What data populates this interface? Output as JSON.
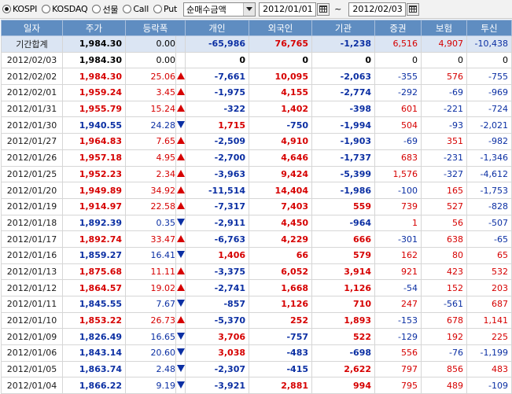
{
  "toolbar": {
    "radios": [
      {
        "label": "KOSPI",
        "checked": true
      },
      {
        "label": "KOSDAQ",
        "checked": false
      },
      {
        "label": "선물",
        "checked": false
      },
      {
        "label": "Call",
        "checked": false
      },
      {
        "label": "Put",
        "checked": false
      }
    ],
    "select_value": "순매수금액",
    "date_from": "2012/01/01",
    "date_sep": "~",
    "date_to": "2012/02/03"
  },
  "headers": [
    "일자",
    "주가",
    "등락폭",
    "개인",
    "외국인",
    "기관",
    "증권",
    "보험",
    "투신"
  ],
  "colors": {
    "up": "#d60000",
    "down": "#0b2fa3",
    "header_bg": "#5f8dc1",
    "summary_bg": "#dbe5f3"
  },
  "rows": [
    {
      "date": "기간합계",
      "price": "1,984.30",
      "dir": "flat",
      "chg": "0.00",
      "ind": "-65,986",
      "frn": "76,765",
      "inst": "-1,238",
      "sec": "6,516",
      "ins": "4,907",
      "trust": "-10,438",
      "summary": true
    },
    {
      "date": "2012/02/03",
      "price": "1,984.30",
      "dir": "flat",
      "chg": "0.00",
      "ind": "0",
      "frn": "0",
      "inst": "0",
      "sec": "0",
      "ins": "0",
      "trust": "0"
    },
    {
      "date": "2012/02/02",
      "price": "1,984.30",
      "dir": "up",
      "chg": "25.06",
      "ind": "-7,661",
      "frn": "10,095",
      "inst": "-2,063",
      "sec": "-355",
      "ins": "576",
      "trust": "-755"
    },
    {
      "date": "2012/02/01",
      "price": "1,959.24",
      "dir": "up",
      "chg": "3.45",
      "ind": "-1,975",
      "frn": "4,155",
      "inst": "-2,774",
      "sec": "-292",
      "ins": "-69",
      "trust": "-969"
    },
    {
      "date": "2012/01/31",
      "price": "1,955.79",
      "dir": "up",
      "chg": "15.24",
      "ind": "-322",
      "frn": "1,402",
      "inst": "-398",
      "sec": "601",
      "ins": "-221",
      "trust": "-724"
    },
    {
      "date": "2012/01/30",
      "price": "1,940.55",
      "dir": "down",
      "chg": "24.28",
      "ind": "1,715",
      "frn": "-750",
      "inst": "-1,994",
      "sec": "504",
      "ins": "-93",
      "trust": "-2,021"
    },
    {
      "date": "2012/01/27",
      "price": "1,964.83",
      "dir": "up",
      "chg": "7.65",
      "ind": "-2,509",
      "frn": "4,910",
      "inst": "-1,903",
      "sec": "-69",
      "ins": "351",
      "trust": "-982"
    },
    {
      "date": "2012/01/26",
      "price": "1,957.18",
      "dir": "up",
      "chg": "4.95",
      "ind": "-2,700",
      "frn": "4,646",
      "inst": "-1,737",
      "sec": "683",
      "ins": "-231",
      "trust": "-1,346"
    },
    {
      "date": "2012/01/25",
      "price": "1,952.23",
      "dir": "up",
      "chg": "2.34",
      "ind": "-3,963",
      "frn": "9,424",
      "inst": "-5,399",
      "sec": "1,576",
      "ins": "-327",
      "trust": "-4,612"
    },
    {
      "date": "2012/01/20",
      "price": "1,949.89",
      "dir": "up",
      "chg": "34.92",
      "ind": "-11,514",
      "frn": "14,404",
      "inst": "-1,986",
      "sec": "-100",
      "ins": "165",
      "trust": "-1,753"
    },
    {
      "date": "2012/01/19",
      "price": "1,914.97",
      "dir": "up",
      "chg": "22.58",
      "ind": "-7,317",
      "frn": "7,403",
      "inst": "559",
      "sec": "739",
      "ins": "527",
      "trust": "-828"
    },
    {
      "date": "2012/01/18",
      "price": "1,892.39",
      "dir": "down",
      "chg": "0.35",
      "ind": "-2,911",
      "frn": "4,450",
      "inst": "-964",
      "sec": "1",
      "ins": "56",
      "trust": "-507"
    },
    {
      "date": "2012/01/17",
      "price": "1,892.74",
      "dir": "up",
      "chg": "33.47",
      "ind": "-6,763",
      "frn": "4,229",
      "inst": "666",
      "sec": "-301",
      "ins": "638",
      "trust": "-65"
    },
    {
      "date": "2012/01/16",
      "price": "1,859.27",
      "dir": "down",
      "chg": "16.41",
      "ind": "1,406",
      "frn": "66",
      "inst": "579",
      "sec": "162",
      "ins": "80",
      "trust": "65"
    },
    {
      "date": "2012/01/13",
      "price": "1,875.68",
      "dir": "up",
      "chg": "11.11",
      "ind": "-3,375",
      "frn": "6,052",
      "inst": "3,914",
      "sec": "921",
      "ins": "423",
      "trust": "532"
    },
    {
      "date": "2012/01/12",
      "price": "1,864.57",
      "dir": "up",
      "chg": "19.02",
      "ind": "-2,741",
      "frn": "1,668",
      "inst": "1,126",
      "sec": "-54",
      "ins": "152",
      "trust": "203"
    },
    {
      "date": "2012/01/11",
      "price": "1,845.55",
      "dir": "down",
      "chg": "7.67",
      "ind": "-857",
      "frn": "1,126",
      "inst": "710",
      "sec": "247",
      "ins": "-561",
      "trust": "687"
    },
    {
      "date": "2012/01/10",
      "price": "1,853.22",
      "dir": "up",
      "chg": "26.73",
      "ind": "-5,370",
      "frn": "252",
      "inst": "1,893",
      "sec": "-153",
      "ins": "678",
      "trust": "1,141"
    },
    {
      "date": "2012/01/09",
      "price": "1,826.49",
      "dir": "down",
      "chg": "16.65",
      "ind": "3,706",
      "frn": "-757",
      "inst": "522",
      "sec": "-129",
      "ins": "192",
      "trust": "225"
    },
    {
      "date": "2012/01/06",
      "price": "1,843.14",
      "dir": "down",
      "chg": "20.60",
      "ind": "3,038",
      "frn": "-483",
      "inst": "-698",
      "sec": "556",
      "ins": "-76",
      "trust": "-1,199"
    },
    {
      "date": "2012/01/05",
      "price": "1,863.74",
      "dir": "down",
      "chg": "2.48",
      "ind": "-2,307",
      "frn": "-415",
      "inst": "2,622",
      "sec": "797",
      "ins": "856",
      "trust": "483"
    },
    {
      "date": "2012/01/04",
      "price": "1,866.22",
      "dir": "down",
      "chg": "9.19",
      "ind": "-3,921",
      "frn": "2,881",
      "inst": "994",
      "sec": "795",
      "ins": "489",
      "trust": "-109"
    }
  ]
}
